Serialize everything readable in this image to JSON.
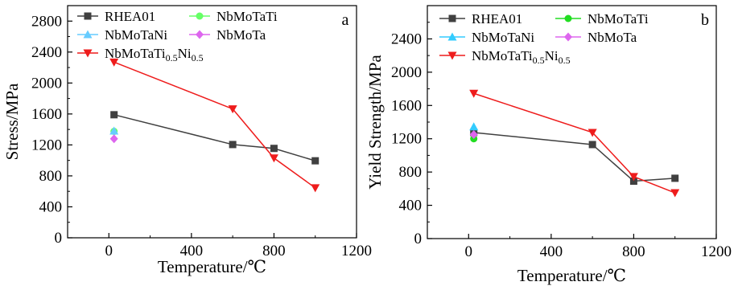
{
  "chart_data": [
    {
      "panel_label": "a",
      "type": "line",
      "xlabel": "Temperature/℃",
      "ylabel": "Stress/MPa",
      "xlim": [
        -200,
        1200
      ],
      "ylim": [
        0,
        3000
      ],
      "xticks": [
        0,
        400,
        800,
        1200
      ],
      "yticks": [
        0,
        400,
        800,
        1200,
        1600,
        2000,
        2400,
        2800
      ],
      "grid": false,
      "legend_position": "top",
      "series": [
        {
          "name": "RHEA01",
          "color": "#404040",
          "marker": "square",
          "x": [
            25,
            600,
            800,
            1000
          ],
          "y": [
            1590,
            1205,
            1155,
            995
          ]
        },
        {
          "name": "NbMoTaTi",
          "color": "#66ff66",
          "marker": "circle",
          "x": [
            25
          ],
          "y": [
            1375
          ]
        },
        {
          "name": "NbMoTaNi",
          "color": "#66ccff",
          "marker": "triangle-up",
          "x": [
            25
          ],
          "y": [
            1380
          ]
        },
        {
          "name": "NbMoTa",
          "color": "#dd66ee",
          "marker": "diamond",
          "x": [
            25
          ],
          "y": [
            1280
          ]
        },
        {
          "name": "NbMoTaTi",
          "name_sub1": "0.5",
          "name_mid": "Ni",
          "name_sub2": "0.5",
          "color": "#ee1c1c",
          "marker": "triangle-down",
          "x": [
            25,
            600,
            800,
            1000
          ],
          "y": [
            2270,
            1665,
            1030,
            645
          ]
        }
      ]
    },
    {
      "panel_label": "b",
      "type": "line",
      "xlabel": "Temperature/℃",
      "ylabel": "Yield Strength/MPa",
      "xlim": [
        -200,
        1200
      ],
      "ylim": [
        0,
        2800
      ],
      "xticks": [
        0,
        400,
        800,
        1200
      ],
      "yticks": [
        0,
        400,
        800,
        1200,
        1600,
        2000,
        2400
      ],
      "grid": false,
      "legend_position": "top",
      "series": [
        {
          "name": "RHEA01",
          "color": "#404040",
          "marker": "square",
          "x": [
            25,
            600,
            800,
            1000
          ],
          "y": [
            1275,
            1130,
            690,
            725
          ]
        },
        {
          "name": "NbMoTaTi",
          "color": "#22dd22",
          "marker": "circle",
          "x": [
            25
          ],
          "y": [
            1200
          ]
        },
        {
          "name": "NbMoTaNi",
          "color": "#33ccff",
          "marker": "triangle-up",
          "x": [
            25
          ],
          "y": [
            1345
          ]
        },
        {
          "name": "NbMoTa",
          "color": "#dd66ee",
          "marker": "diamond",
          "x": [
            25
          ],
          "y": [
            1250
          ]
        },
        {
          "name": "NbMoTaTi",
          "name_sub1": "0.5",
          "name_mid": "Ni",
          "name_sub2": "0.5",
          "color": "#ee1c1c",
          "marker": "triangle-down",
          "x": [
            25,
            600,
            800,
            1000
          ],
          "y": [
            1745,
            1275,
            745,
            550
          ]
        }
      ]
    }
  ]
}
